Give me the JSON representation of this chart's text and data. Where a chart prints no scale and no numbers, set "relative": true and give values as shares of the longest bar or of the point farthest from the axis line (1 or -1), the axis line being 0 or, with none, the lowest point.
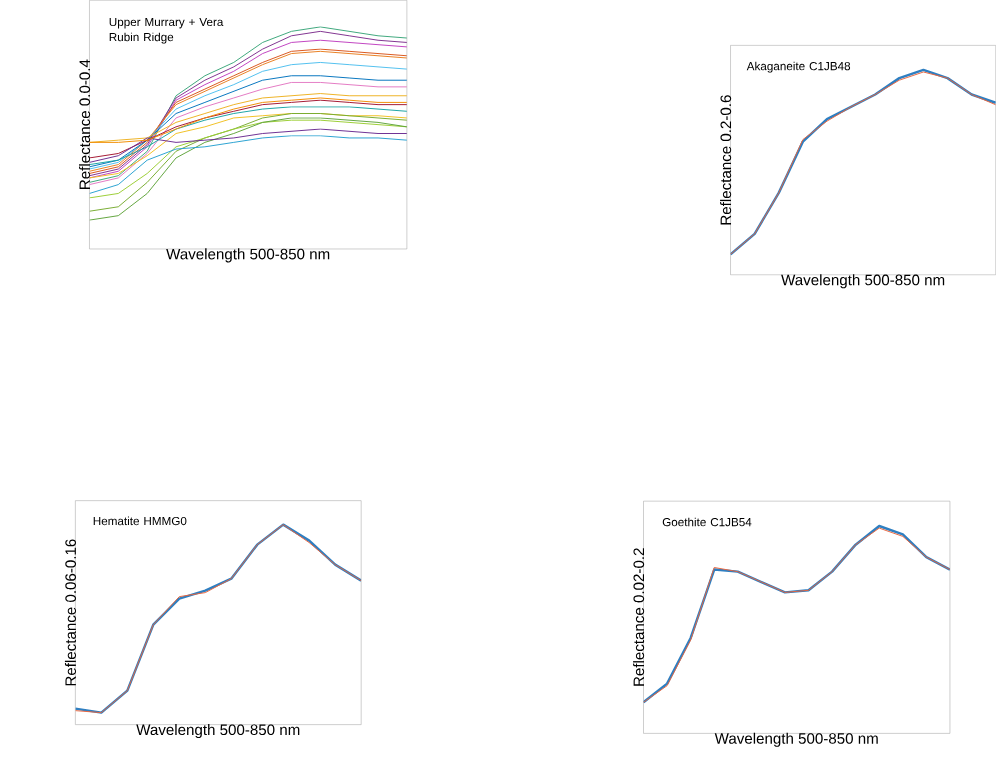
{
  "chart_data": [
    {
      "type": "line",
      "relative": true,
      "title": "Upper Murrary + Vera Rubin Ridge",
      "xlabel": "Wavelength 500-850 nm",
      "ylabel": "Reflectance 0.0-0.4",
      "categories": [
        null,
        null,
        null,
        null,
        null,
        null,
        null,
        null,
        null,
        null,
        null,
        null
      ],
      "series": [
        {
          "color": "#3aa57a",
          "values": [
            0.3,
            0.33,
            0.44,
            0.69,
            0.78,
            0.84,
            0.93,
            0.98,
            1.0,
            0.98,
            0.96,
            0.95
          ]
        },
        {
          "color": "#7e2f8e",
          "values": [
            0.33,
            0.36,
            0.47,
            0.68,
            0.76,
            0.82,
            0.9,
            0.96,
            0.98,
            0.96,
            0.94,
            0.93
          ]
        },
        {
          "color": "#c040c0",
          "values": [
            0.32,
            0.35,
            0.46,
            0.67,
            0.74,
            0.8,
            0.88,
            0.93,
            0.94,
            0.93,
            0.92,
            0.91
          ]
        },
        {
          "color": "#d95319",
          "values": [
            0.34,
            0.37,
            0.48,
            0.66,
            0.72,
            0.78,
            0.84,
            0.89,
            0.9,
            0.89,
            0.88,
            0.87
          ]
        },
        {
          "color": "#e87d1e",
          "values": [
            0.35,
            0.38,
            0.49,
            0.65,
            0.71,
            0.77,
            0.83,
            0.88,
            0.89,
            0.88,
            0.87,
            0.86
          ]
        },
        {
          "color": "#4dbeee",
          "values": [
            0.36,
            0.39,
            0.49,
            0.63,
            0.69,
            0.74,
            0.8,
            0.83,
            0.84,
            0.83,
            0.82,
            0.81
          ]
        },
        {
          "color": "#0072bd",
          "values": [
            0.37,
            0.4,
            0.49,
            0.61,
            0.66,
            0.71,
            0.76,
            0.78,
            0.78,
            0.77,
            0.76,
            0.76
          ]
        },
        {
          "color": "#e377c2",
          "values": [
            0.29,
            0.32,
            0.43,
            0.59,
            0.64,
            0.68,
            0.72,
            0.75,
            0.75,
            0.74,
            0.73,
            0.73
          ]
        },
        {
          "color": "#edb120",
          "values": [
            0.48,
            0.49,
            0.5,
            0.57,
            0.61,
            0.65,
            0.68,
            0.69,
            0.7,
            0.69,
            0.69,
            0.69
          ]
        },
        {
          "color": "#a2142f",
          "values": [
            0.41,
            0.43,
            0.49,
            0.55,
            0.59,
            0.62,
            0.65,
            0.66,
            0.67,
            0.66,
            0.65,
            0.65
          ]
        },
        {
          "color": "#17a2a2",
          "values": [
            0.38,
            0.4,
            0.46,
            0.54,
            0.58,
            0.61,
            0.63,
            0.64,
            0.64,
            0.64,
            0.63,
            0.62
          ]
        },
        {
          "color": "#f0c020",
          "values": [
            0.32,
            0.34,
            0.42,
            0.52,
            0.55,
            0.59,
            0.6,
            0.61,
            0.61,
            0.6,
            0.6,
            0.59
          ]
        },
        {
          "color": "#77ac30",
          "values": [
            0.17,
            0.19,
            0.3,
            0.44,
            0.5,
            0.54,
            0.59,
            0.61,
            0.61,
            0.6,
            0.59,
            0.58
          ]
        },
        {
          "color": "#9acd32",
          "values": [
            0.23,
            0.25,
            0.34,
            0.46,
            0.5,
            0.54,
            0.57,
            0.58,
            0.58,
            0.57,
            0.56,
            0.55
          ]
        },
        {
          "color": "#5fa33a",
          "values": [
            0.13,
            0.15,
            0.25,
            0.41,
            0.48,
            0.52,
            0.57,
            0.59,
            0.59,
            0.58,
            0.57,
            0.55
          ]
        },
        {
          "color": "#27a0d0",
          "values": [
            0.25,
            0.29,
            0.4,
            0.45,
            0.46,
            0.48,
            0.5,
            0.51,
            0.51,
            0.5,
            0.5,
            0.49
          ]
        },
        {
          "color": "#6a2c91",
          "values": [
            0.39,
            0.42,
            0.5,
            0.48,
            0.49,
            0.5,
            0.52,
            0.53,
            0.54,
            0.53,
            0.52,
            0.52
          ]
        },
        {
          "color": "#f08c00",
          "values": [
            0.48,
            0.48,
            0.49,
            0.54,
            0.59,
            0.63,
            0.66,
            0.67,
            0.68,
            0.67,
            0.66,
            0.66
          ]
        }
      ]
    },
    {
      "type": "line",
      "relative": true,
      "title": "Akaganeite C1JB48",
      "xlabel": "Wavelength 500-850 nm",
      "ylabel": "Reflectance 0.2-0.6",
      "categories": [
        null,
        null,
        null,
        null,
        null,
        null,
        null,
        null,
        null,
        null,
        null,
        null
      ],
      "series": [
        {
          "color": "#2f7fc1",
          "values": [
            0.1,
            0.2,
            0.4,
            0.65,
            0.76,
            0.82,
            0.88,
            0.96,
            1.0,
            0.96,
            0.88,
            0.84
          ]
        },
        {
          "color": "#e8643c",
          "values": [
            0.1,
            0.2,
            0.4,
            0.66,
            0.75,
            0.82,
            0.88,
            0.95,
            0.99,
            0.96,
            0.88,
            0.83
          ]
        }
      ]
    },
    {
      "type": "line",
      "relative": true,
      "title": "Hematite HMMG0",
      "xlabel": "Wavelength 500-850 nm",
      "ylabel": "Reflectance 0.06-0.16",
      "categories": [
        null,
        null,
        null,
        null,
        null,
        null,
        null,
        null,
        null,
        null,
        null,
        null
      ],
      "series": [
        {
          "color": "#2f7fc1",
          "values": [
            0.08,
            0.06,
            0.17,
            0.5,
            0.63,
            0.67,
            0.73,
            0.9,
            1.0,
            0.92,
            0.8,
            0.72
          ]
        },
        {
          "color": "#e8643c",
          "values": [
            0.07,
            0.06,
            0.17,
            0.5,
            0.64,
            0.66,
            0.73,
            0.9,
            1.0,
            0.91,
            0.8,
            0.72
          ]
        }
      ]
    },
    {
      "type": "line",
      "relative": true,
      "title": "Goethite C1JB54",
      "xlabel": "Wavelength 500-850 nm",
      "ylabel": "Reflectance 0.02-0.2",
      "categories": [
        null,
        null,
        null,
        null,
        null,
        null,
        null,
        null,
        null,
        null,
        null,
        null,
        null,
        null
      ],
      "series": [
        {
          "color": "#2f7fc1",
          "values": [
            0.15,
            0.24,
            0.46,
            0.79,
            0.78,
            0.73,
            0.68,
            0.69,
            0.78,
            0.91,
            1.0,
            0.96,
            0.85,
            0.79
          ]
        },
        {
          "color": "#e8643c",
          "values": [
            0.15,
            0.23,
            0.45,
            0.8,
            0.78,
            0.73,
            0.68,
            0.69,
            0.78,
            0.91,
            0.99,
            0.95,
            0.85,
            0.79
          ]
        }
      ]
    }
  ]
}
